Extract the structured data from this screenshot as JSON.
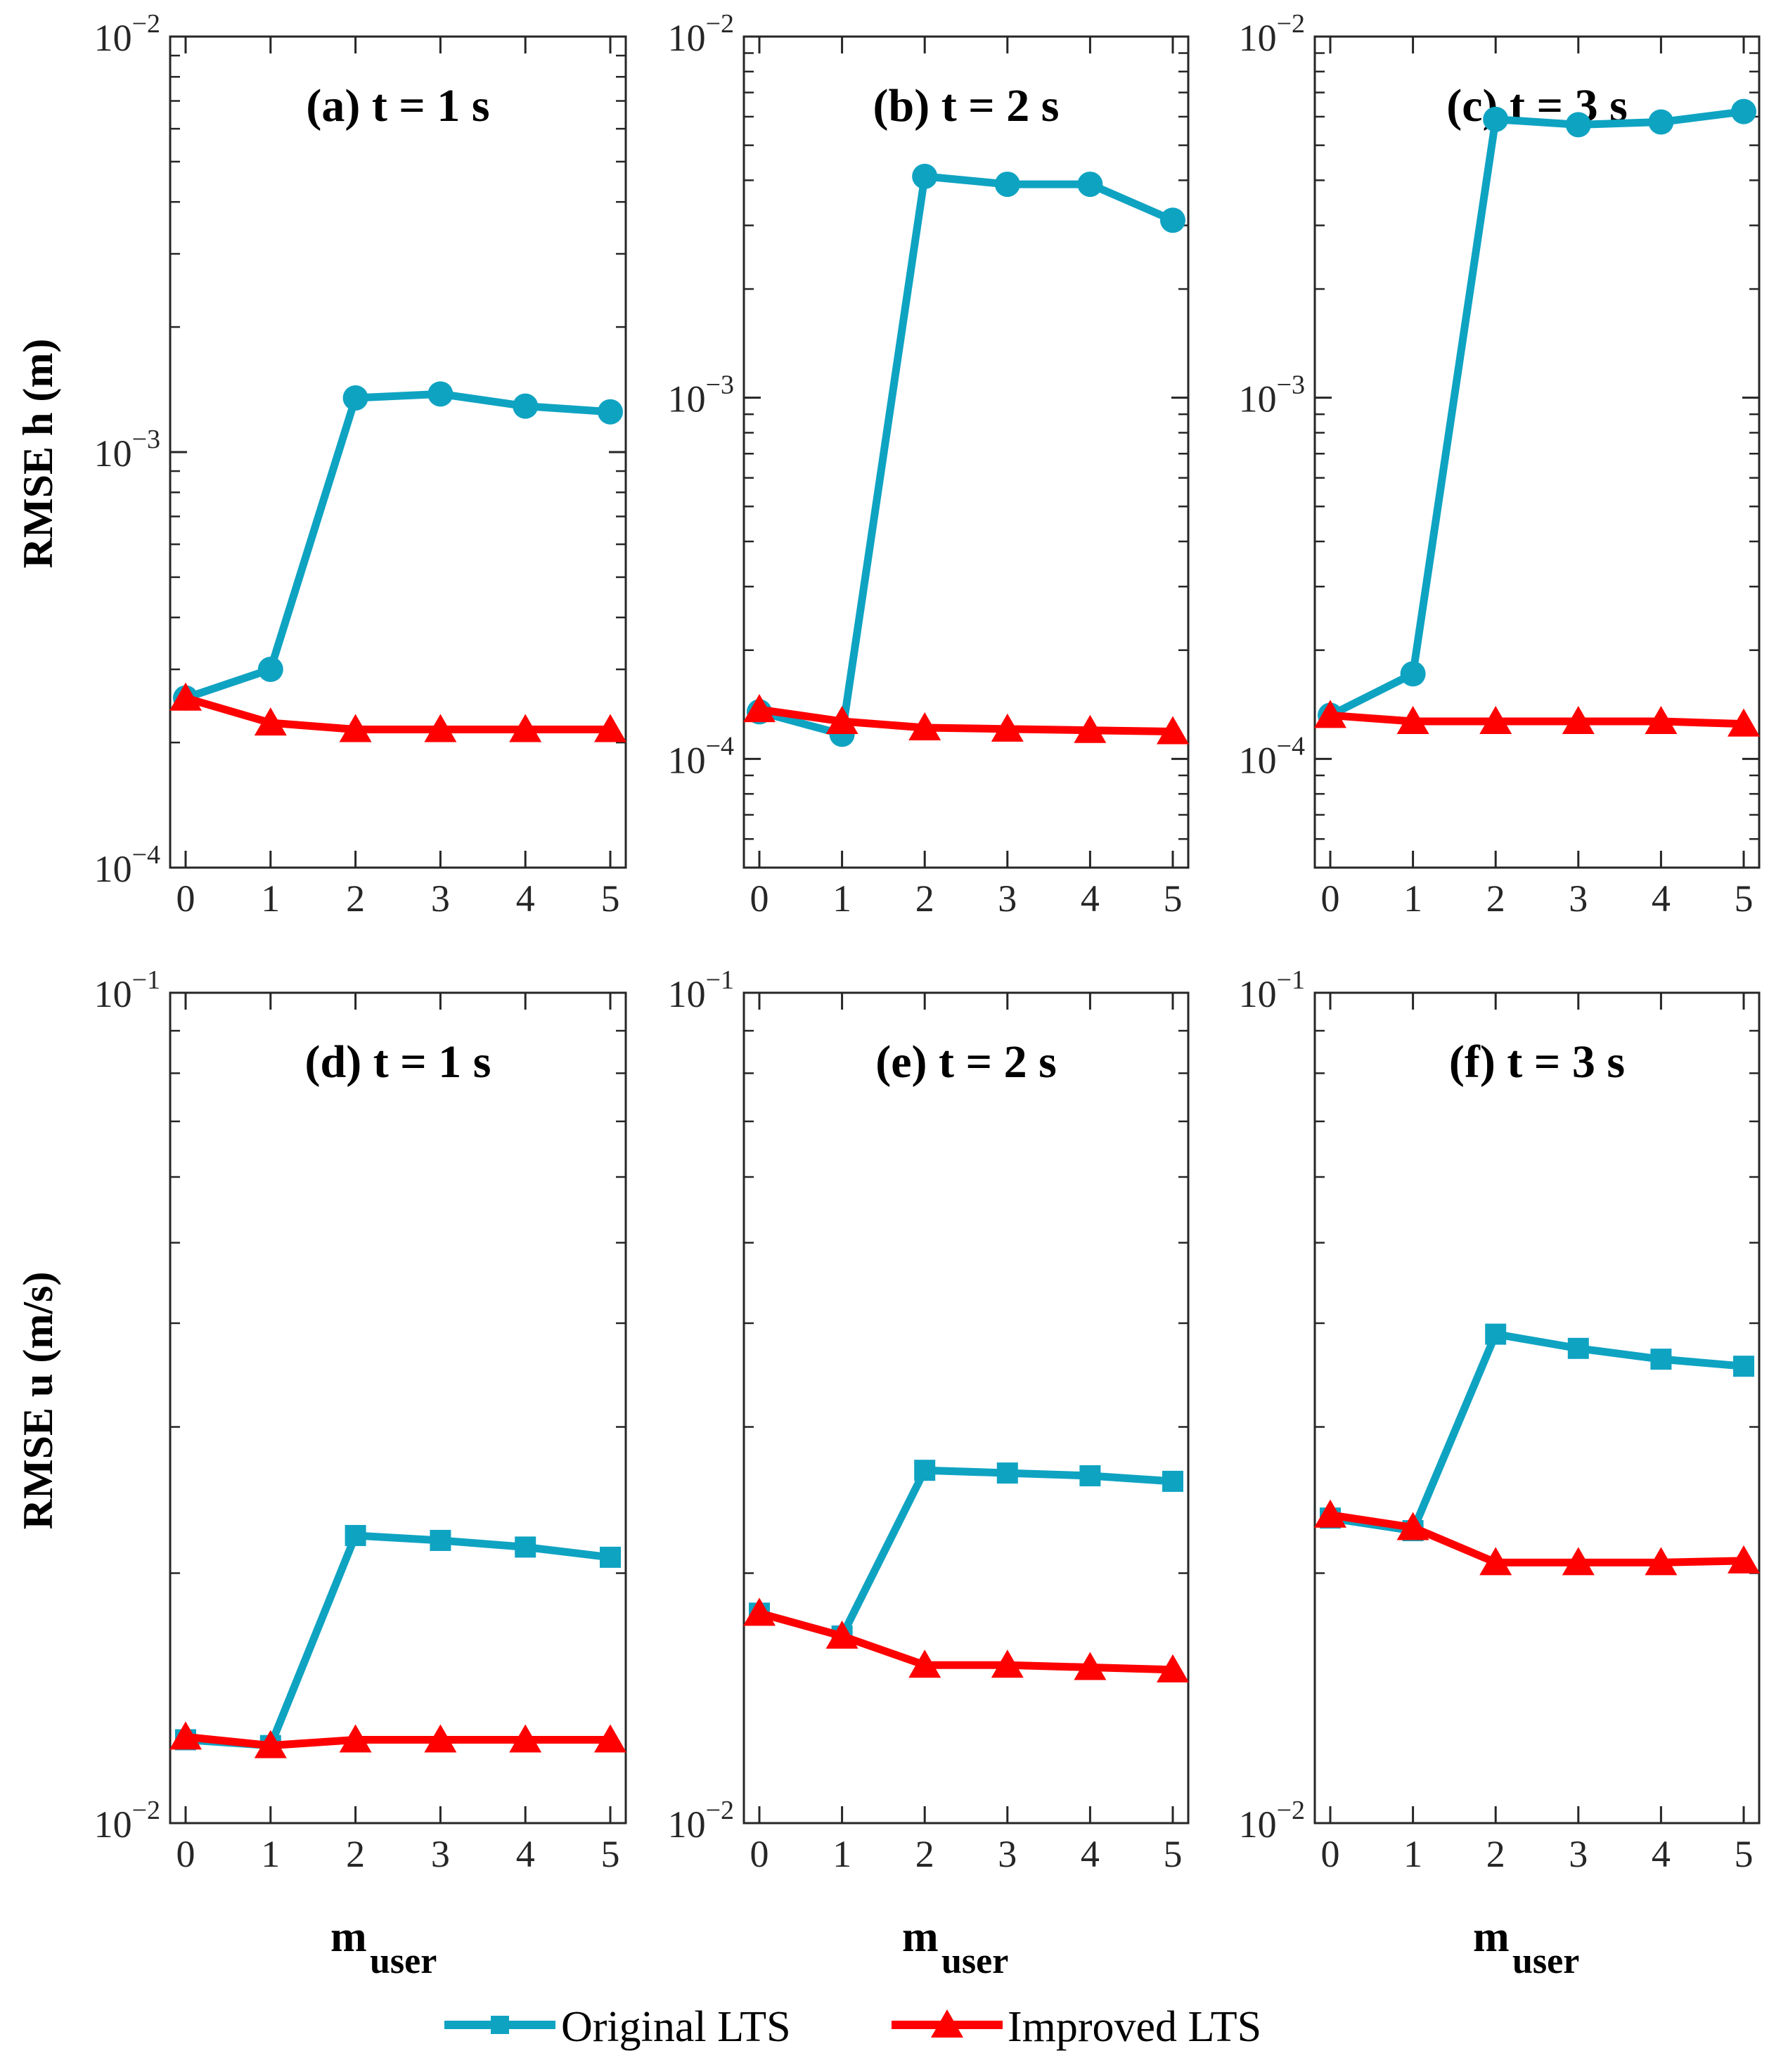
{
  "figure": {
    "row_labels": [
      "RMSE h (m)",
      "RMSE u (m/s)"
    ],
    "xlabel_main": "m",
    "xlabel_sub": "user"
  },
  "legend": [
    {
      "name": "Original LTS",
      "color": "#0fa3c2",
      "marker": "square"
    },
    {
      "name": "Improved LTS",
      "color": "#ff0000",
      "marker": "triangle"
    }
  ],
  "chart_data": [
    {
      "id": "a",
      "type": "line",
      "title": "(a) t = 1 s",
      "yscale": "log",
      "ylim": [
        0.0001,
        0.01
      ],
      "x": [
        0,
        1,
        2,
        3,
        4,
        5
      ],
      "xticks": [
        "0",
        "1",
        "2",
        "3",
        "4",
        "5"
      ],
      "yticks": [
        {
          "base": "10",
          "exp": "−2",
          "v": 0.01
        },
        {
          "base": "10",
          "exp": "−3",
          "v": 0.001
        },
        {
          "base": "10",
          "exp": "−4",
          "v": 0.0001
        }
      ],
      "series": [
        {
          "name": "Original LTS",
          "color": "#0fa3c2",
          "marker": "circle",
          "values": [
            0.000256,
            0.0003,
            0.00135,
            0.00138,
            0.00129,
            0.00125
          ]
        },
        {
          "name": "Improved LTS",
          "color": "#ff0000",
          "marker": "triangle",
          "values": [
            0.000256,
            0.000223,
            0.000215,
            0.000215,
            0.000215,
            0.000215
          ]
        }
      ]
    },
    {
      "id": "b",
      "type": "line",
      "title": "(b) t = 2 s",
      "yscale": "log",
      "ylim": [
        5e-05,
        0.01
      ],
      "x": [
        0,
        1,
        2,
        3,
        4,
        5
      ],
      "xticks": [
        "0",
        "1",
        "2",
        "3",
        "4",
        "5"
      ],
      "yticks": [
        {
          "base": "10",
          "exp": "−2",
          "v": 0.01
        },
        {
          "base": "10",
          "exp": "−3",
          "v": 0.001
        },
        {
          "base": "10",
          "exp": "−4",
          "v": 0.0001
        }
      ],
      "series": [
        {
          "name": "Original LTS",
          "color": "#0fa3c2",
          "marker": "circle",
          "values": [
            0.000135,
            0.000117,
            0.0041,
            0.0039,
            0.0039,
            0.0031
          ]
        },
        {
          "name": "Improved LTS",
          "color": "#ff0000",
          "marker": "triangle",
          "values": [
            0.000137,
            0.000127,
            0.000122,
            0.000121,
            0.00012,
            0.000119
          ]
        }
      ]
    },
    {
      "id": "c",
      "type": "line",
      "title": "(c) t = 3 s",
      "yscale": "log",
      "ylim": [
        5e-05,
        0.01
      ],
      "x": [
        0,
        1,
        2,
        3,
        4,
        5
      ],
      "xticks": [
        "0",
        "1",
        "2",
        "3",
        "4",
        "5"
      ],
      "yticks": [
        {
          "base": "10",
          "exp": "−2",
          "v": 0.01
        },
        {
          "base": "10",
          "exp": "−3",
          "v": 0.001
        },
        {
          "base": "10",
          "exp": "−4",
          "v": 0.0001
        }
      ],
      "series": [
        {
          "name": "Original LTS",
          "color": "#0fa3c2",
          "marker": "circle",
          "values": [
            0.000132,
            0.000172,
            0.0059,
            0.0057,
            0.0058,
            0.0062
          ]
        },
        {
          "name": "Improved LTS",
          "color": "#ff0000",
          "marker": "triangle",
          "values": [
            0.000132,
            0.000127,
            0.000127,
            0.000127,
            0.000127,
            0.000125
          ]
        }
      ]
    },
    {
      "id": "d",
      "type": "line",
      "title": "(d) t = 1 s",
      "yscale": "log",
      "ylim": [
        0.01,
        0.1
      ],
      "x": [
        0,
        1,
        2,
        3,
        4,
        5
      ],
      "xticks": [
        "0",
        "1",
        "2",
        "3",
        "4",
        "5"
      ],
      "yticks": [
        {
          "base": "10",
          "exp": "−1",
          "v": 0.1
        },
        {
          "base": "10",
          "exp": "−2",
          "v": 0.01
        }
      ],
      "series": [
        {
          "name": "Original LTS",
          "color": "#0fa3c2",
          "marker": "square",
          "values": [
            0.0126,
            0.0124,
            0.0222,
            0.0219,
            0.0215,
            0.0209
          ]
        },
        {
          "name": "Improved LTS",
          "color": "#ff0000",
          "marker": "triangle",
          "values": [
            0.0127,
            0.0124,
            0.0126,
            0.0126,
            0.0126,
            0.0126
          ]
        }
      ]
    },
    {
      "id": "e",
      "type": "line",
      "title": "(e) t = 2 s",
      "yscale": "log",
      "ylim": [
        0.01,
        0.1
      ],
      "x": [
        0,
        1,
        2,
        3,
        4,
        5
      ],
      "xticks": [
        "0",
        "1",
        "2",
        "3",
        "4",
        "5"
      ],
      "yticks": [
        {
          "base": "10",
          "exp": "−1",
          "v": 0.1
        },
        {
          "base": "10",
          "exp": "−2",
          "v": 0.01
        }
      ],
      "series": [
        {
          "name": "Original LTS",
          "color": "#0fa3c2",
          "marker": "square",
          "values": [
            0.0179,
            0.0168,
            0.0266,
            0.0264,
            0.0262,
            0.0258
          ]
        },
        {
          "name": "Improved LTS",
          "color": "#ff0000",
          "marker": "triangle",
          "values": [
            0.0179,
            0.0168,
            0.0155,
            0.0155,
            0.0154,
            0.0153
          ]
        }
      ]
    },
    {
      "id": "f",
      "type": "line",
      "title": "(f) t = 3 s",
      "yscale": "log",
      "ylim": [
        0.01,
        0.1
      ],
      "x": [
        0,
        1,
        2,
        3,
        4,
        5
      ],
      "xticks": [
        "0",
        "1",
        "2",
        "3",
        "4",
        "5"
      ],
      "yticks": [
        {
          "base": "10",
          "exp": "−1",
          "v": 0.1
        },
        {
          "base": "10",
          "exp": "−2",
          "v": 0.01
        }
      ],
      "series": [
        {
          "name": "Original LTS",
          "color": "#0fa3c2",
          "marker": "square",
          "values": [
            0.0233,
            0.0225,
            0.0388,
            0.0373,
            0.0362,
            0.0355
          ]
        },
        {
          "name": "Improved LTS",
          "color": "#ff0000",
          "marker": "triangle",
          "values": [
            0.0235,
            0.0227,
            0.0206,
            0.0206,
            0.0206,
            0.0207
          ]
        }
      ]
    }
  ]
}
